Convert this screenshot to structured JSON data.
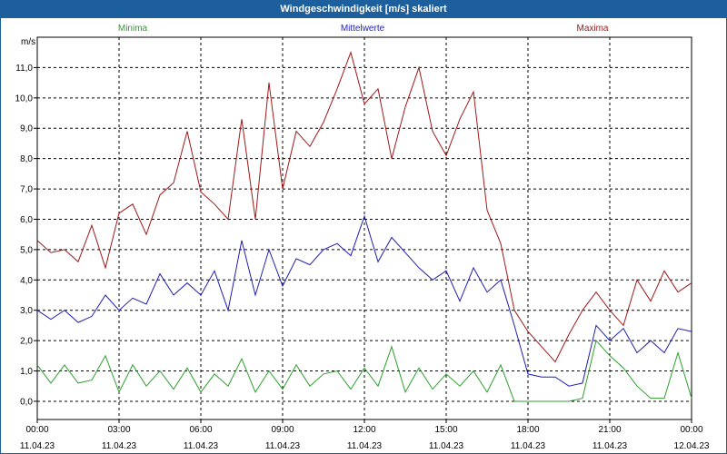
{
  "window": {
    "title": "Windgeschwindigkeit [m/s] skaliert"
  },
  "colors": {
    "minima": "#2ca02c",
    "mittelwerte": "#1f1fb4",
    "maxima": "#a01818",
    "titlebar": "#1c5f9c"
  },
  "chart_data": {
    "type": "line",
    "title": "Windgeschwindigkeit [m/s] skaliert",
    "ylabel": "m/s",
    "xlabel": "",
    "ylim": [
      -0.6,
      12.0
    ],
    "xlim": [
      0,
      24
    ],
    "grid": true,
    "legend_placement": "top",
    "yticks": [
      "0,0",
      "1,0",
      "2,0",
      "3,0",
      "4,0",
      "5,0",
      "6,0",
      "7,0",
      "8,0",
      "9,0",
      "10,0",
      "11,0"
    ],
    "xticks": [
      {
        "time": "00:00",
        "date": "11.04.23"
      },
      {
        "time": "03:00",
        "date": "11.04.23"
      },
      {
        "time": "06:00",
        "date": "11.04.23"
      },
      {
        "time": "09:00",
        "date": "11.04.23"
      },
      {
        "time": "12:00",
        "date": "11.04.23"
      },
      {
        "time": "15:00",
        "date": "11.04.23"
      },
      {
        "time": "18:00",
        "date": "11.04.23"
      },
      {
        "time": "21:00",
        "date": "11.04.23"
      },
      {
        "time": "00:00",
        "date": "12.04.23"
      }
    ],
    "x_hours": [
      0,
      0.5,
      1,
      1.5,
      2,
      2.5,
      3,
      3.5,
      4,
      4.5,
      5,
      5.5,
      6,
      6.5,
      7,
      7.5,
      8,
      8.5,
      9,
      9.5,
      10,
      10.5,
      11,
      11.5,
      12,
      12.5,
      13,
      13.5,
      14,
      14.5,
      15,
      15.5,
      16,
      16.5,
      17,
      17.5,
      18,
      18.5,
      19,
      19.5,
      20,
      20.5,
      21,
      21.5,
      22,
      22.5,
      23,
      23.5,
      24
    ],
    "series": [
      {
        "name": "Minima",
        "color": "#2ca02c",
        "values": [
          1.2,
          0.6,
          1.2,
          0.6,
          0.7,
          1.5,
          0.3,
          1.2,
          0.5,
          1.0,
          0.4,
          1.1,
          0.3,
          0.9,
          0.5,
          1.4,
          0.3,
          1.0,
          0.4,
          1.2,
          0.5,
          0.9,
          1.0,
          0.4,
          1.1,
          0.5,
          1.8,
          0.3,
          1.1,
          0.4,
          0.9,
          0.5,
          1.0,
          0.3,
          1.2,
          0.0,
          0.0,
          0.0,
          0.0,
          0.0,
          0.1,
          2.0,
          1.5,
          1.1,
          0.5,
          0.1,
          0.1,
          1.6,
          0.1
        ]
      },
      {
        "name": "Mittelwerte",
        "color": "#1f1fb4",
        "values": [
          3.0,
          2.7,
          3.0,
          2.6,
          2.8,
          3.5,
          3.0,
          3.4,
          3.2,
          4.2,
          3.5,
          3.9,
          3.5,
          4.3,
          3.0,
          5.3,
          3.5,
          5.0,
          3.8,
          4.7,
          4.5,
          5.0,
          5.2,
          4.8,
          6.1,
          4.6,
          5.4,
          4.9,
          4.4,
          4.0,
          4.3,
          3.3,
          4.4,
          3.6,
          4.0,
          2.5,
          0.9,
          0.8,
          0.8,
          0.5,
          0.6,
          2.5,
          2.0,
          2.4,
          1.6,
          2.0,
          1.6,
          2.4,
          2.3
        ]
      },
      {
        "name": "Maxima",
        "color": "#a01818",
        "values": [
          5.3,
          4.9,
          5.0,
          4.6,
          5.8,
          4.4,
          6.2,
          6.5,
          5.5,
          6.8,
          7.2,
          8.9,
          6.9,
          6.5,
          6.0,
          9.3,
          6.0,
          10.5,
          7.0,
          8.9,
          8.4,
          9.2,
          10.3,
          11.5,
          9.8,
          10.3,
          8.0,
          9.7,
          11.0,
          8.9,
          8.1,
          9.3,
          10.2,
          6.3,
          5.2,
          3.0,
          2.3,
          1.8,
          1.3,
          2.2,
          3.0,
          3.6,
          3.0,
          2.5,
          4.0,
          3.3,
          4.3,
          3.6,
          3.9
        ]
      }
    ]
  }
}
